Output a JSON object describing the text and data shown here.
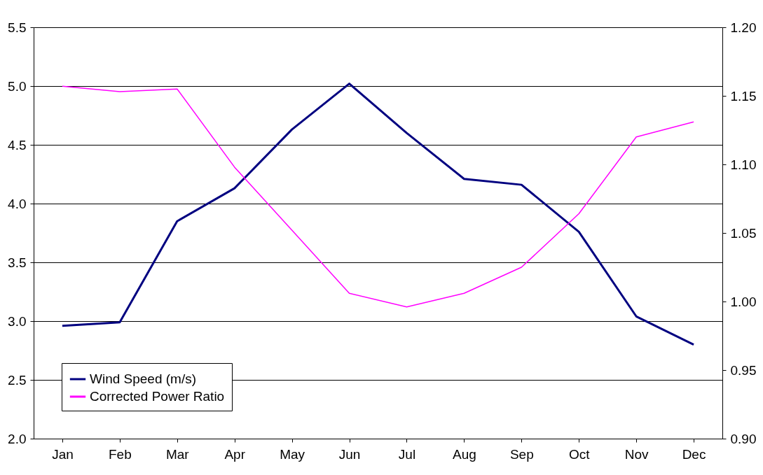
{
  "chart_data": {
    "type": "line",
    "categories": [
      "Jan",
      "Feb",
      "Mar",
      "Apr",
      "May",
      "Jun",
      "Jul",
      "Aug",
      "Sep",
      "Oct",
      "Nov",
      "Dec"
    ],
    "series": [
      {
        "name": "Wind Speed (m/s)",
        "color": "#000080",
        "values": [
          2.96,
          2.99,
          3.85,
          4.13,
          4.63,
          5.02,
          4.6,
          4.21,
          4.16,
          3.76,
          3.04,
          2.8
        ]
      },
      {
        "name": "Corrected Power Ratio",
        "color": "#ff00ff",
        "axis": "y2",
        "values": [
          1.157,
          1.153,
          1.155,
          1.098,
          1.052,
          1.006,
          0.996,
          1.006,
          1.025,
          1.064,
          1.12,
          1.131
        ]
      }
    ],
    "ylim": [
      2.0,
      5.5
    ],
    "yticks": [
      {
        "value": 2.0,
        "label": "2.0"
      },
      {
        "value": 2.5,
        "label": "2.5"
      },
      {
        "value": 3.0,
        "label": "3.0"
      },
      {
        "value": 3.5,
        "label": "3.5"
      },
      {
        "value": 4.0,
        "label": "4.0"
      },
      {
        "value": 4.5,
        "label": "4.5"
      },
      {
        "value": 5.0,
        "label": "5.0"
      },
      {
        "value": 5.5,
        "label": "5.5"
      }
    ],
    "y2lim": [
      0.9,
      1.2
    ],
    "y2ticks": [
      {
        "value": 0.9,
        "label": "0.90"
      },
      {
        "value": 0.95,
        "label": "0.95"
      },
      {
        "value": 1.0,
        "label": "1.00"
      },
      {
        "value": 1.05,
        "label": "1.05"
      },
      {
        "value": 1.1,
        "label": "1.10"
      },
      {
        "value": 1.15,
        "label": "1.15"
      },
      {
        "value": 1.2,
        "label": "1.20"
      }
    ],
    "grid": "y",
    "legend": "bottom left",
    "marker": "none",
    "line_style": "solid"
  }
}
